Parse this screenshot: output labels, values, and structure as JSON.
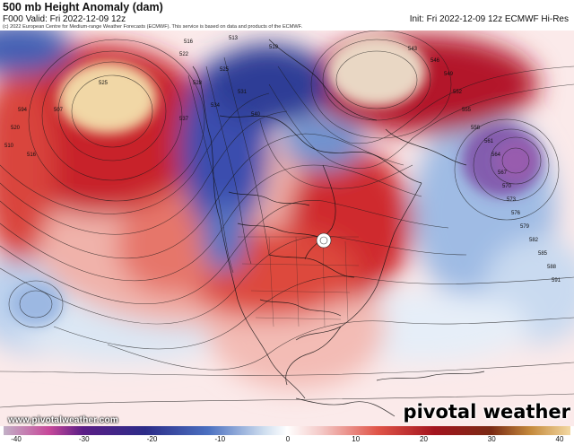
{
  "header": {
    "title": "500 mb Height Anomaly (dam)",
    "valid": "F000 Valid: Fri 2022-12-09 12z",
    "init": "Init: Fri 2022-12-09 12z ECMWF Hi-Res",
    "credit": "(c) 2022 European Centre for Medium-range Weather Forecasts (ECMWF). This service is based on data and products of the ECMWF."
  },
  "footer": {
    "website": "www.pivotalweather.com",
    "brand": "pivotal weather"
  },
  "colorbar": {
    "ticks": [
      "-40",
      "-30",
      "-20",
      "-10",
      "0",
      "10",
      "20",
      "30",
      "40"
    ],
    "colors": [
      "#8c2a6e",
      "#c7489a",
      "#3c1a7a",
      "#3b5fb5",
      "#7fa9dc",
      "#d6e4f2",
      "#ffffff",
      "#f4c9c7",
      "#e46a5e",
      "#b3202a",
      "#7a1a14",
      "#c58a3c",
      "#f3d8a2"
    ]
  },
  "map": {
    "contour_labels": [
      "516",
      "513",
      "519",
      "522",
      "525",
      "528",
      "531",
      "534",
      "537",
      "540",
      "543",
      "546",
      "549",
      "552",
      "555",
      "558",
      "561",
      "564",
      "567",
      "570",
      "573",
      "576",
      "579",
      "582",
      "585",
      "588",
      "591",
      "594",
      "520",
      "510",
      "507",
      "516",
      "525"
    ],
    "colors": {
      "positive_strong": "#a3141e",
      "positive_mid": "#d9453c",
      "positive_light": "#f1b3aa",
      "negative_strong": "#2c2c88",
      "negative_mid": "#4a6fc0",
      "negative_light": "#aac4e6",
      "extreme_pos": "#f1d8a8",
      "extreme_neg": "#f3b6e2"
    }
  }
}
